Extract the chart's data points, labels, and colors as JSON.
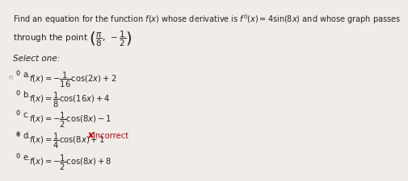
{
  "bg_color": "#f0ede8",
  "title_line1": "Find an equation for the function $f(x)$ whose derivative is $f(x) = 4\\sin(8x)$ and whose graph passes",
  "title_line1a": "Find an equation for the function ",
  "title_line1b": " whose derivative is ",
  "title_line1c": " = 4sin(8x) and whose graph passes",
  "title_line2": "through the point ",
  "select_text": "Select one:",
  "options": [
    {
      "label": "a.",
      "formula": "$f(x) = -\\dfrac{1}{16}\\cos(2x) + 2$",
      "incorrect": false
    },
    {
      "label": "b.",
      "formula": "$f(x) = \\dfrac{1}{8}\\cos(16x) + 4$",
      "incorrect": false
    },
    {
      "label": "c.",
      "formula": "$f(x) = -\\dfrac{1}{2}\\cos(8x) - 1$",
      "incorrect": false
    },
    {
      "label": "d.",
      "formula": "$f(x) = \\dfrac{1}{4}\\cos(8x) + 1$",
      "incorrect": true
    },
    {
      "label": "e.",
      "formula": "$f(x) = -\\dfrac{1}{2}\\cos(8x) + 8$",
      "incorrect": false
    }
  ],
  "incorrect_text": "Incorrect",
  "incorrect_color": "#cc0000",
  "x_mark_color": "#cc0000",
  "radio_color": "#555555",
  "selected_option": 3,
  "text_color": "#222222",
  "font_size_title": 7.0,
  "font_size_options": 7.2,
  "font_size_select": 7.5
}
